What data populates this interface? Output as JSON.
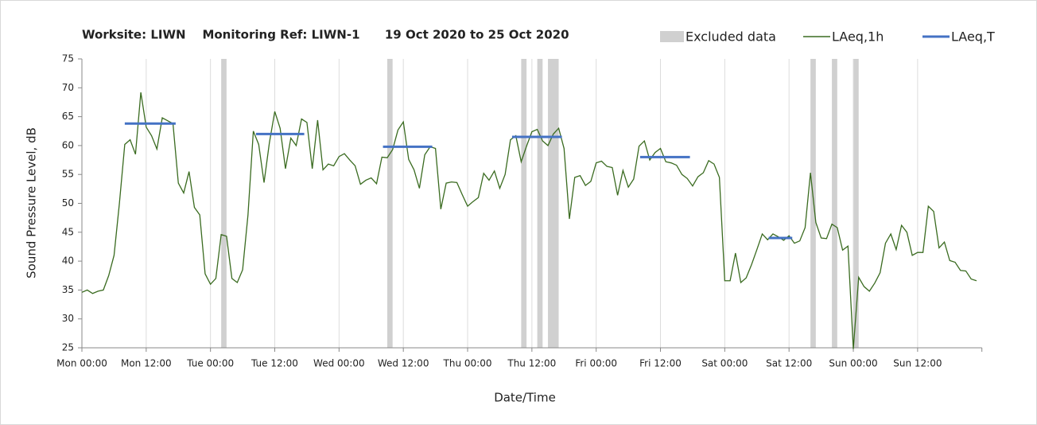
{
  "chart_data": {
    "type": "line",
    "title": "Worksite: LIWN    Monitoring Ref: LIWN-1      19 Oct 2020 to 25 Oct 2020",
    "y_label": "Sound Pressure Level, dB",
    "x_label": "Date/Time",
    "xlim": [
      0,
      168
    ],
    "ylim": [
      25,
      75
    ],
    "yticks": [
      25,
      30,
      35,
      40,
      45,
      50,
      55,
      60,
      65,
      70,
      75
    ],
    "xticks": [
      {
        "value": 0,
        "label": "Mon 00:00"
      },
      {
        "value": 12,
        "label": "Mon 12:00"
      },
      {
        "value": 24,
        "label": "Tue 00:00"
      },
      {
        "value": 36,
        "label": "Tue 12:00"
      },
      {
        "value": 48,
        "label": "Wed 00:00"
      },
      {
        "value": 60,
        "label": "Wed 12:00"
      },
      {
        "value": 72,
        "label": "Thu 00:00"
      },
      {
        "value": 84,
        "label": "Thu 12:00"
      },
      {
        "value": 96,
        "label": "Fri 00:00"
      },
      {
        "value": 108,
        "label": "Fri 12:00"
      },
      {
        "value": 120,
        "label": "Sat 00:00"
      },
      {
        "value": 132,
        "label": "Sat 12:00"
      },
      {
        "value": 144,
        "label": "Sun 00:00"
      },
      {
        "value": 156,
        "label": "Sun 12:00"
      }
    ],
    "x": [
      0,
      1,
      2,
      3,
      4,
      5,
      6,
      7,
      8,
      9,
      10,
      11,
      12,
      13,
      14,
      15,
      16,
      17,
      18,
      19,
      20,
      21,
      22,
      23,
      24,
      25,
      26,
      27,
      28,
      29,
      30,
      31,
      32,
      33,
      34,
      35,
      36,
      37,
      38,
      39,
      40,
      41,
      42,
      43,
      44,
      45,
      46,
      47,
      48,
      49,
      50,
      51,
      52,
      53,
      54,
      55,
      56,
      57,
      58,
      59,
      60,
      61,
      62,
      63,
      64,
      65,
      66,
      67,
      68,
      69,
      70,
      71,
      72,
      73,
      74,
      75,
      76,
      77,
      78,
      79,
      80,
      81,
      82,
      83,
      84,
      85,
      86,
      87,
      88,
      89,
      90,
      91,
      92,
      93,
      94,
      95,
      96,
      97,
      98,
      99,
      100,
      101,
      102,
      103,
      104,
      105,
      106,
      107,
      108,
      109,
      110,
      111,
      112,
      113,
      114,
      115,
      116,
      117,
      118,
      119,
      120,
      121,
      122,
      123,
      124,
      125,
      126,
      127,
      128,
      129,
      130,
      131,
      132,
      133,
      134,
      135,
      136,
      137,
      138,
      139,
      140,
      141,
      142,
      143,
      144,
      145,
      146,
      147,
      148,
      149,
      150,
      151,
      152,
      153,
      154,
      155,
      156,
      157,
      158,
      159,
      160,
      161,
      162,
      163,
      164,
      165,
      166,
      167
    ],
    "series": [
      {
        "name": "LAeq,1h",
        "color": "#3a6b20",
        "values": [
          34.6,
          35,
          34.4,
          34.8,
          35,
          37.5,
          41,
          50,
          60.2,
          61,
          58.5,
          69.2,
          63.2,
          61.7,
          59.4,
          64.8,
          64.3,
          63.8,
          53.5,
          51.8,
          55.5,
          49.3,
          48,
          37.8,
          36,
          37,
          44.6,
          44.3,
          37,
          36.3,
          38.5,
          48,
          62.5,
          60.2,
          53.6,
          60.5,
          65.9,
          63,
          56,
          61.3,
          60,
          64.6,
          64,
          56,
          64.4,
          55.8,
          56.8,
          56.5,
          58.1,
          58.6,
          57.5,
          56.5,
          53.3,
          54,
          54.4,
          53.4,
          58,
          57.9,
          59.3,
          62.7,
          64.1,
          57.6,
          55.8,
          52.6,
          58.4,
          59.8,
          59.5,
          49,
          53.5,
          53.7,
          53.6,
          51.5,
          49.5,
          50.3,
          51,
          55.2,
          54,
          55.6,
          52.6,
          55,
          61,
          61.7,
          57.2,
          59.9,
          62.4,
          62.8,
          60.8,
          60,
          62,
          63,
          59.5,
          47.3,
          54.5,
          54.8,
          53.1,
          53.8,
          57,
          57.3,
          56.4,
          56.2,
          51.4,
          55.7,
          52.8,
          54.2,
          59.9,
          60.8,
          57.5,
          58.8,
          59.5,
          57.2,
          57,
          56.6,
          55,
          54.3,
          53,
          54.6,
          55.3,
          57.4,
          56.8,
          54.5,
          36.6,
          36.6,
          41.4,
          36.3,
          37.1,
          39.4,
          42,
          44.7,
          43.7,
          44.7,
          44.2,
          43.6,
          44.4,
          43.1,
          43.5,
          45.8,
          55.3,
          46.7,
          44,
          43.9,
          46.4,
          45.8,
          41.9,
          42.6,
          24.8,
          37.2,
          35.6,
          34.8,
          36.2,
          38,
          43.1,
          44.7,
          42,
          46.2,
          45,
          41,
          41.5,
          41.5,
          49.5,
          48.6,
          42.3,
          43.3,
          40.1,
          39.8,
          38.4,
          38.3,
          36.9,
          36.6
        ]
      }
    ],
    "excluded": {
      "name": "Excluded data",
      "color": "#d0d0d0",
      "ranges": [
        [
          26,
          27
        ],
        [
          57,
          58
        ],
        [
          82,
          83
        ],
        [
          85,
          86
        ],
        [
          87,
          89
        ],
        [
          136,
          137
        ],
        [
          140,
          141
        ],
        [
          144,
          145
        ]
      ]
    },
    "periods": {
      "name": "LAeq,T",
      "color": "#4472c4",
      "segments": [
        {
          "start": 8,
          "end": 17.5,
          "value": 63.8
        },
        {
          "start": 32.5,
          "end": 41.5,
          "value": 62
        },
        {
          "start": 56.2,
          "end": 65.4,
          "value": 59.8
        },
        {
          "start": 80.3,
          "end": 89.6,
          "value": 61.5
        },
        {
          "start": 104.2,
          "end": 113.5,
          "value": 58
        },
        {
          "start": 128.2,
          "end": 132.6,
          "value": 44
        }
      ]
    }
  }
}
